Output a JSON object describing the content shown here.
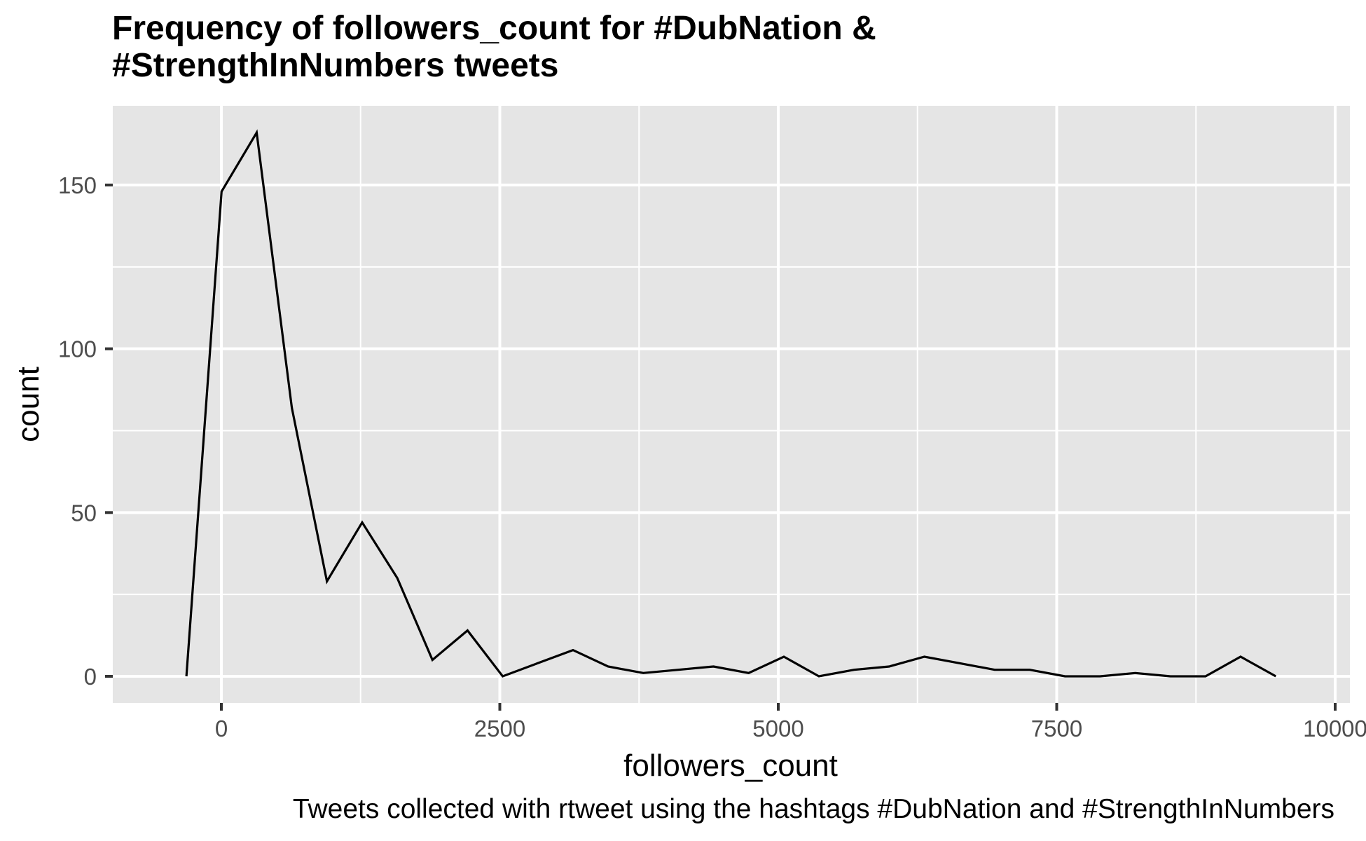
{
  "chart": {
    "title_line1": "Frequency of followers_count for #DubNation &",
    "title_line2": "#StrengthInNumbers tweets",
    "xlabel": "followers_count",
    "ylabel": "count",
    "caption": "Tweets collected with rtweet using the hashtags #DubNation and #StrengthInNumbers",
    "x_ticks": [
      "0",
      "2500",
      "5000",
      "7500",
      "10000"
    ],
    "y_ticks": [
      "0",
      "50",
      "100",
      "150"
    ]
  },
  "colors": {
    "panel_bg": "#e5e5e5",
    "grid": "#ffffff",
    "line": "#000000",
    "tick_text": "#4d4d4d",
    "tick_mark": "#333333"
  },
  "chart_data": {
    "type": "line",
    "title": "Frequency of followers_count for #DubNation & #StrengthInNumbers tweets",
    "subtitle": "",
    "caption": "Tweets collected with rtweet using the hashtags #DubNation and #StrengthInNumbers",
    "xlabel": "followers_count",
    "ylabel": "count",
    "xlim": [
      -975,
      10130
    ],
    "ylim": [
      -8,
      174
    ],
    "x_ticks": [
      0,
      2500,
      5000,
      7500,
      10000
    ],
    "y_ticks": [
      0,
      50,
      100,
      150
    ],
    "grid": true,
    "legend": "none",
    "series": [
      {
        "name": "count",
        "x": [
          -314,
          2,
          317,
          633,
          948,
          1264,
          1579,
          1895,
          2210,
          2526,
          2841,
          3157,
          3472,
          3788,
          4103,
          4419,
          4734,
          5050,
          5365,
          5681,
          5996,
          6312,
          6627,
          6943,
          7258,
          7574,
          7889,
          8205,
          8520,
          8836,
          9151,
          9467
        ],
        "values": [
          0,
          148,
          166,
          82,
          29,
          47,
          30,
          5,
          14,
          0,
          4,
          8,
          3,
          1,
          2,
          3,
          1,
          6,
          0,
          2,
          3,
          6,
          4,
          2,
          2,
          0,
          0,
          1,
          0,
          0,
          6,
          0
        ]
      }
    ]
  }
}
